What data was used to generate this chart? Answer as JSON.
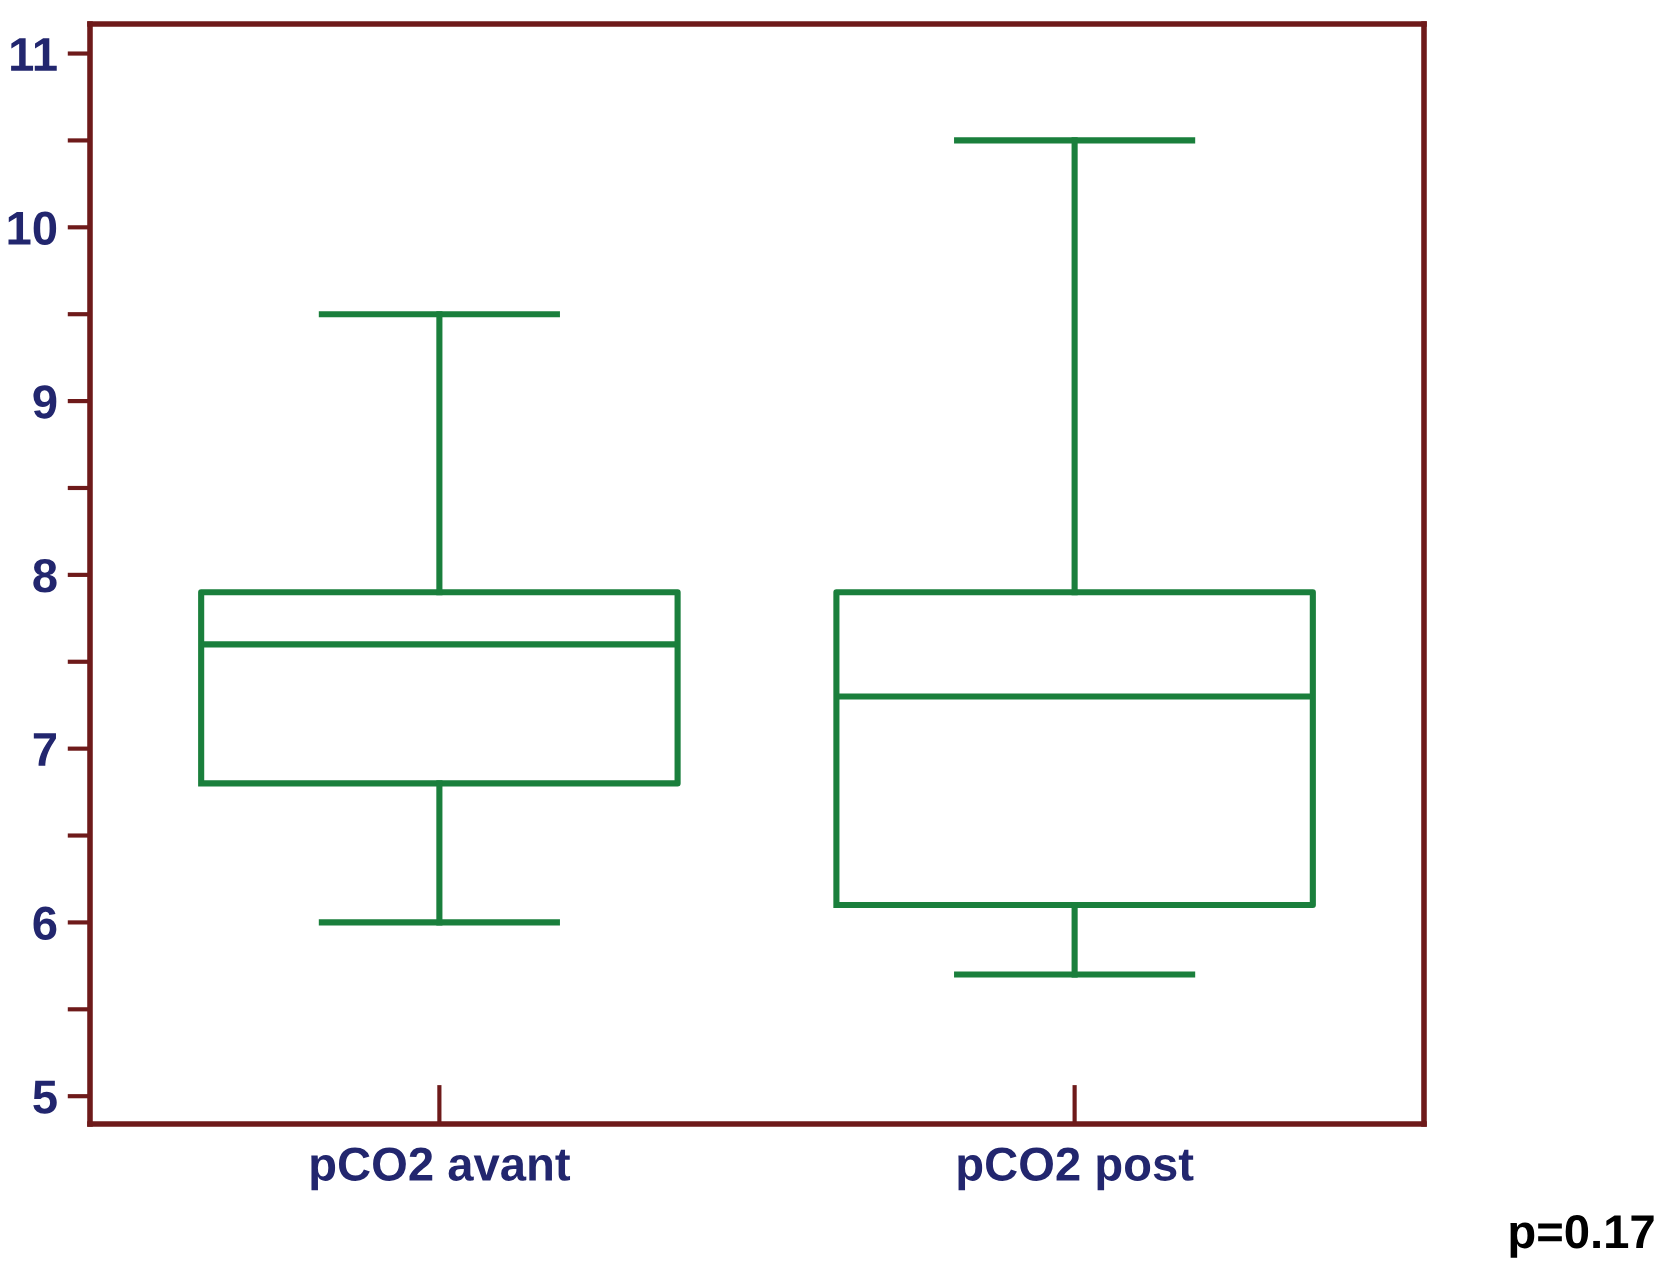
{
  "chart_data": {
    "type": "box",
    "categories": [
      "pCO2 avant",
      "pCO2 post"
    ],
    "boxes": [
      {
        "low": 6.0,
        "q1": 6.8,
        "median": 7.6,
        "q3": 7.9,
        "high": 9.5
      },
      {
        "low": 5.7,
        "q1": 6.1,
        "median": 7.3,
        "q3": 7.9,
        "high": 10.5
      }
    ],
    "color": "#1a7f3c",
    "ylim": [
      4.84,
      11.17
    ],
    "yticks": [
      5,
      {
        "value": 5.5,
        "label": null
      },
      6,
      {
        "value": 6.5,
        "label": null
      },
      7,
      {
        "value": 7.5,
        "label": null
      },
      8,
      {
        "value": 8.5,
        "label": null
      },
      9,
      {
        "value": 9.5,
        "label": null
      },
      10,
      {
        "value": 10.5,
        "label": null
      },
      11
    ],
    "grid": false,
    "annotations": [
      "p=0.17"
    ]
  }
}
